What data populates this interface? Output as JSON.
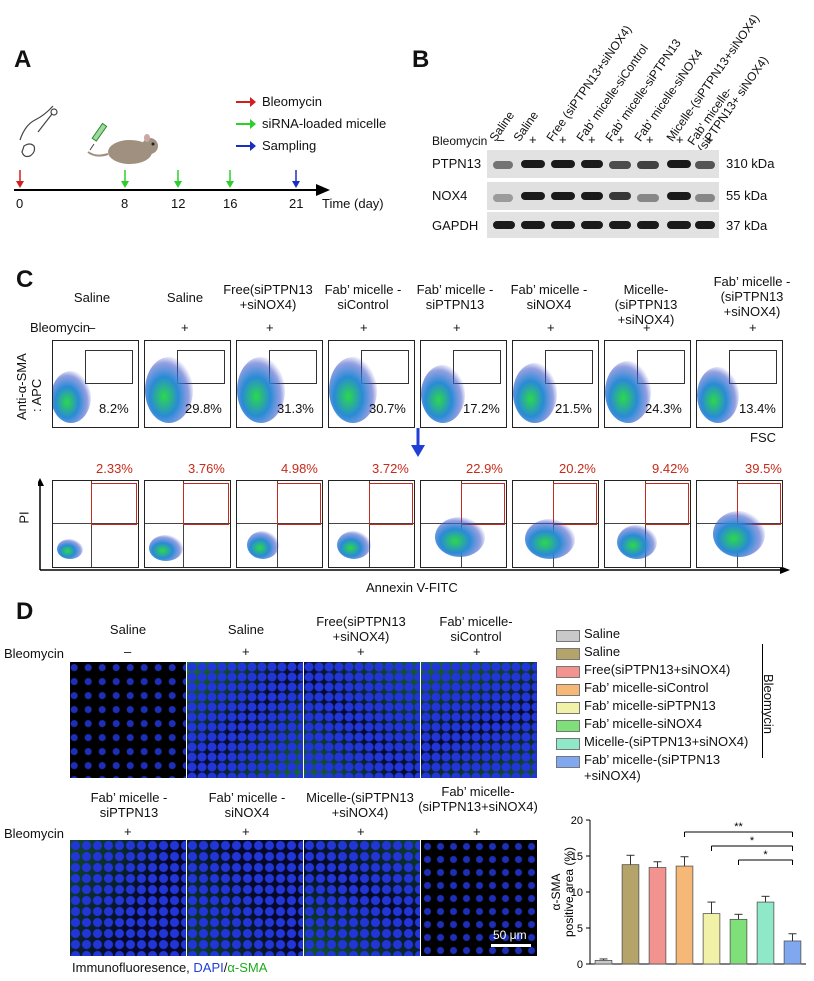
{
  "panelA": {
    "label": "A",
    "legend": [
      {
        "text": "Bleomycin",
        "color": "#d11f1f"
      },
      {
        "text": "siRNA-loaded micelle",
        "color": "#2ccf2c"
      },
      {
        "text": "Sampling",
        "color": "#1a2fbf"
      }
    ],
    "ticks": [
      "0",
      "8",
      "12",
      "16",
      "21"
    ],
    "axis_label": "Time (day)"
  },
  "panelB": {
    "label": "B",
    "columns": [
      "Saline",
      "Saline",
      "Free (siPTPN13+siNOX4)",
      "Fab' micelle-siControl",
      "Fab' micelle-siPTPN13",
      "Fab' micelle-siNOX4",
      "Micelle-(siPTPN13+siNOX4)",
      "Fab' micelle-(siPTPN13+ siNOX4)"
    ],
    "bleomycin_label": "Bleomycin",
    "signs": [
      "–",
      "+",
      "+",
      "+",
      "+",
      "+",
      "+",
      "+"
    ],
    "rows": [
      {
        "name": "PTPN13",
        "size": "310 kDa"
      },
      {
        "name": "NOX4",
        "size": "55 kDa"
      },
      {
        "name": "GAPDH",
        "size": "37 kDa"
      }
    ]
  },
  "panelC": {
    "label": "C",
    "groups": [
      "Saline",
      "Saline",
      "Free(siPTPN13 +siNOX4)",
      "Fab’ micelle -siControl",
      "Fab’ micelle -siPTPN13",
      "Fab’ micelle -siNOX4",
      "Micelle-(siPTPN13 +siNOX4)",
      "Fab’ micelle -(siPTPN13 +siNOX4)"
    ],
    "bleomycin_label": "Bleomycin",
    "signs": [
      "–",
      "+",
      "+",
      "+",
      "+",
      "+",
      "+",
      "+"
    ],
    "y_label_1": "Anti-α-SMA",
    "y_label_2": ": APC",
    "fsc_label": "FSC",
    "sma_pct": [
      "8.2%",
      "29.8%",
      "31.3%",
      "30.7%",
      "17.2%",
      "21.5%",
      "24.3%",
      "13.4%"
    ],
    "apoptosis_pct": [
      "2.33%",
      "3.76%",
      "4.98%",
      "3.72%",
      "22.9%",
      "20.2%",
      "9.42%",
      "39.5%"
    ],
    "pi_label": "PI",
    "annexin_label": "Annexin V-FITC"
  },
  "panelD": {
    "label": "D",
    "row1_groups": [
      "Saline",
      "Saline",
      "Free(siPTPN13 +siNOX4)",
      "Fab’ micelle- siControl"
    ],
    "row1_signs": [
      "–",
      "+",
      "+",
      "+"
    ],
    "row2_groups": [
      "Fab’ micelle -siPTPN13",
      "Fab’ micelle -siNOX4",
      "Micelle-(siPTPN13 +siNOX4)",
      "Fab’ micelle- (siPTPN13+siNOX4)"
    ],
    "row2_signs": [
      "+",
      "+",
      "+",
      "+"
    ],
    "bleomycin_label": "Bleomycin",
    "scale_bar": "50 μm",
    "caption_prefix": "Immunofluoresence, ",
    "caption_dapi": "DAPI",
    "caption_slash": "/",
    "caption_sma": "α-SMA",
    "legend_side_label": "Bleomycin",
    "legend": [
      {
        "text": "Saline",
        "color": "#c9c9c9"
      },
      {
        "text": "Saline",
        "color": "#b5a46a"
      },
      {
        "text": "Free(siPTPN13+siNOX4)",
        "color": "#f2938f"
      },
      {
        "text": "Fab’ micelle-siControl",
        "color": "#f5b877"
      },
      {
        "text": "Fab’ micelle-siPTPN13",
        "color": "#f1f2a8"
      },
      {
        "text": "Fab’ micelle-siNOX4",
        "color": "#7fe07a"
      },
      {
        "text": "Micelle-(siPTPN13+siNOX4)",
        "color": "#8fe9c8"
      },
      {
        "text": "Fab’ micelle-(siPTPN13 +siNOX4)",
        "color": "#7fa8f0"
      }
    ]
  },
  "chart_data": {
    "type": "bar",
    "ylabel": "α-SMA positive area (%)",
    "ylim": [
      0,
      20
    ],
    "yticks": [
      "0",
      "5",
      "10",
      "15",
      "20"
    ],
    "values": [
      0.5,
      13.8,
      13.4,
      13.6,
      7.0,
      6.2,
      8.6,
      3.2
    ],
    "errors": [
      0.2,
      1.3,
      0.8,
      1.3,
      1.6,
      0.7,
      0.8,
      1.0
    ],
    "significance": [
      {
        "from": 3,
        "to": 7,
        "label": "**"
      },
      {
        "from": 4,
        "to": 7,
        "label": "*"
      },
      {
        "from": 5,
        "to": 7,
        "label": "*"
      }
    ]
  }
}
